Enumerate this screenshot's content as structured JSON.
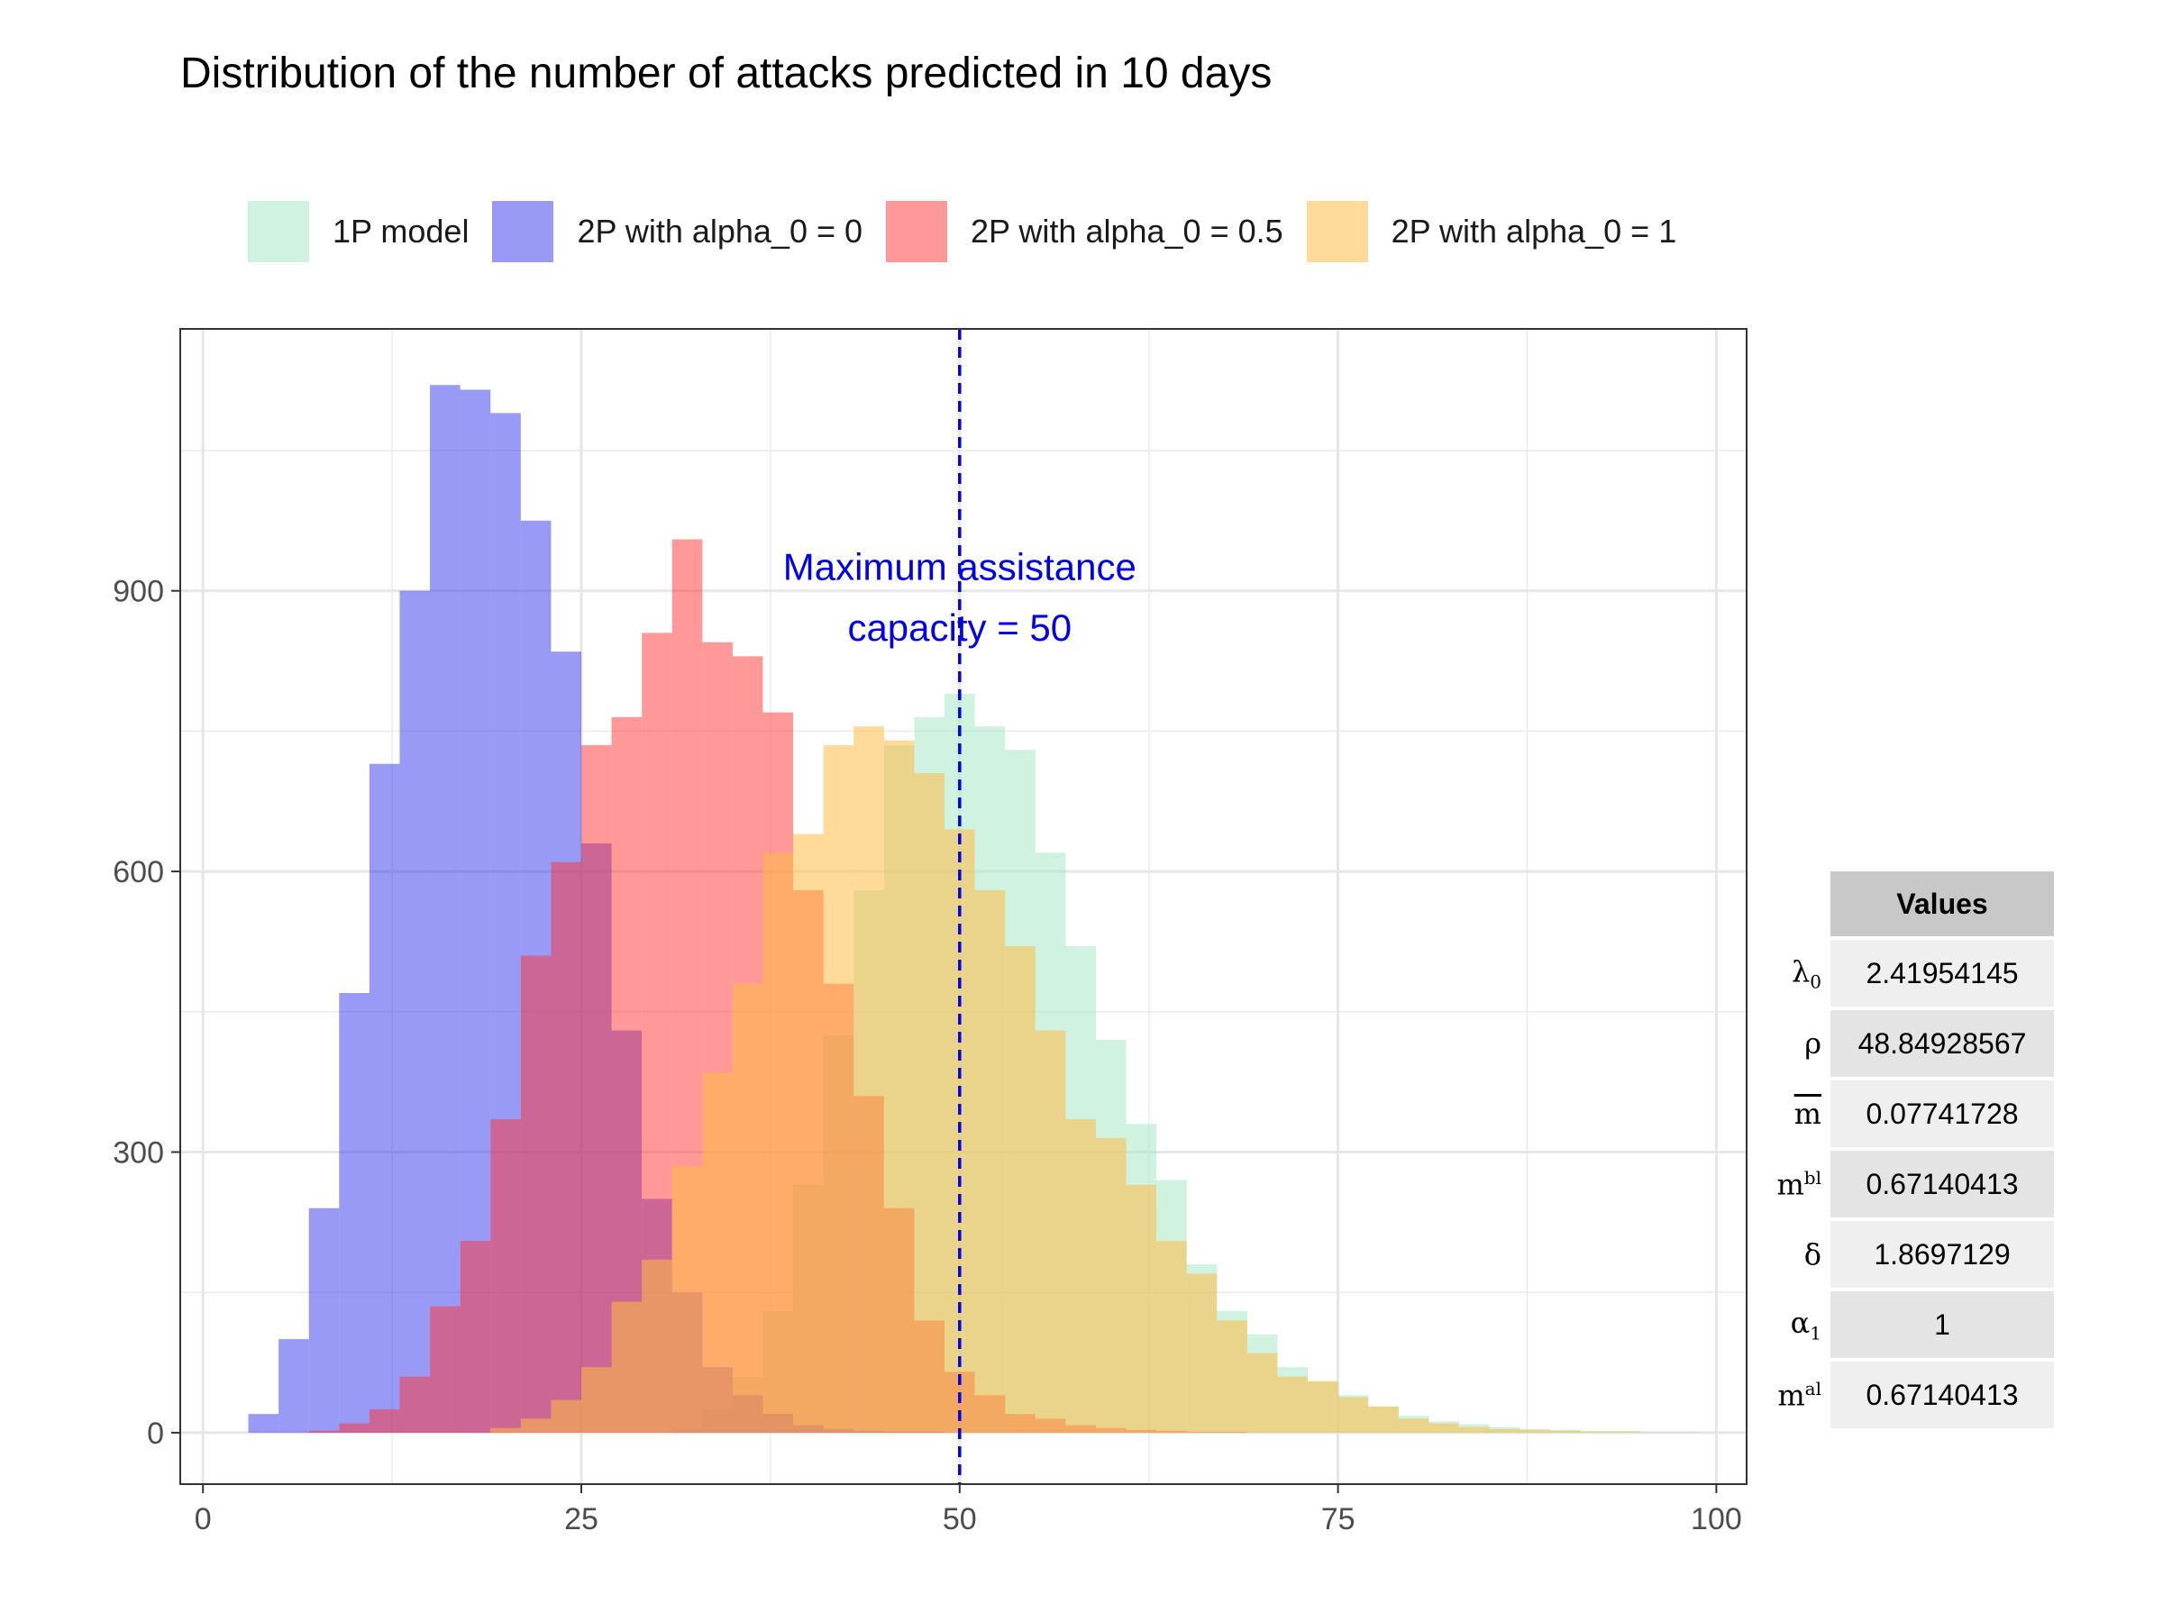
{
  "chart_data": {
    "type": "histogram",
    "title": "Distribution of the number of attacks predicted in 10 days",
    "xlabel": "",
    "ylabel": "",
    "xlim": [
      -1.5,
      102
    ],
    "ylim": [
      -55,
      1180
    ],
    "x_ticks": [
      0,
      25,
      50,
      75,
      100
    ],
    "y_ticks": [
      0,
      300,
      600,
      900
    ],
    "bin_width": 2,
    "bin_starts": [
      3,
      5,
      7,
      9,
      11,
      13,
      15,
      17,
      19,
      21,
      23,
      25,
      27,
      29,
      31,
      33,
      35,
      37,
      39,
      41,
      43,
      45,
      47,
      49,
      51,
      53,
      55,
      57,
      59,
      61,
      63,
      65,
      67,
      69,
      71,
      73,
      75,
      77,
      79,
      81,
      83,
      85,
      87,
      89,
      91,
      93,
      95,
      97
    ],
    "series": [
      {
        "name": "1P model",
        "color": "#a7e7c9",
        "opacity": 0.55,
        "values": [
          0,
          0,
          0,
          0,
          0,
          0,
          0,
          0,
          0,
          0,
          0,
          0,
          0,
          0,
          5,
          25,
          60,
          130,
          265,
          425,
          580,
          735,
          765,
          790,
          755,
          730,
          620,
          520,
          420,
          330,
          270,
          180,
          130,
          105,
          70,
          55,
          40,
          28,
          18,
          12,
          9,
          6,
          4,
          3,
          2,
          2,
          1,
          1
        ]
      },
      {
        "name": "2P with alpha_0 = 0",
        "color": "#3333ee",
        "opacity": 0.5,
        "values": [
          20,
          100,
          240,
          470,
          715,
          900,
          1120,
          1115,
          1090,
          975,
          835,
          630,
          430,
          250,
          150,
          70,
          40,
          20,
          8,
          4,
          2,
          1,
          1,
          0,
          0,
          0,
          0,
          0,
          0,
          0,
          0,
          0,
          0,
          0,
          0,
          0,
          0,
          0,
          0,
          0,
          0,
          0,
          0,
          0,
          0,
          0,
          0,
          0
        ]
      },
      {
        "name": "2P with alpha_0 = 0.5",
        "color": "#ff3333",
        "opacity": 0.5,
        "values": [
          0,
          0,
          2,
          10,
          25,
          60,
          135,
          205,
          335,
          510,
          610,
          735,
          765,
          855,
          955,
          845,
          830,
          770,
          580,
          480,
          360,
          240,
          120,
          65,
          40,
          20,
          15,
          8,
          5,
          3,
          2,
          1,
          1,
          0,
          0,
          0,
          0,
          0,
          0,
          0,
          0,
          0,
          0,
          0,
          0,
          0,
          0,
          0
        ]
      },
      {
        "name": "2P with alpha_0 = 1",
        "color": "#ffbb44",
        "opacity": 0.55,
        "values": [
          0,
          0,
          0,
          0,
          0,
          0,
          0,
          0,
          5,
          15,
          35,
          70,
          140,
          185,
          285,
          385,
          480,
          620,
          640,
          735,
          755,
          740,
          705,
          645,
          580,
          520,
          430,
          335,
          315,
          265,
          205,
          170,
          120,
          85,
          60,
          55,
          38,
          28,
          15,
          10,
          6,
          4,
          3,
          2,
          1,
          1,
          0,
          0
        ]
      }
    ],
    "annotation": {
      "lines": [
        "Maximum assistance",
        "capacity = 50"
      ],
      "x": 50,
      "y_lines": [
        925,
        860
      ],
      "color": "#0000ee"
    },
    "vline": {
      "x": 50,
      "color": "#0000ee",
      "style": "dashed"
    },
    "legend_position": "top"
  },
  "table": {
    "header": "Values",
    "rows": [
      {
        "symbol": "λ",
        "sub": "0",
        "sup": "",
        "overline": false,
        "value": "2.41954145"
      },
      {
        "symbol": "ρ",
        "sub": "",
        "sup": "",
        "overline": false,
        "value": "48.84928567"
      },
      {
        "symbol": "m",
        "sub": "",
        "sup": "",
        "overline": true,
        "value": "0.07741728"
      },
      {
        "symbol": "m",
        "sub": "",
        "sup": "bl",
        "overline": false,
        "value": "0.67140413"
      },
      {
        "symbol": "δ",
        "sub": "",
        "sup": "",
        "overline": false,
        "value": "1.8697129"
      },
      {
        "symbol": "α",
        "sub": "1",
        "sup": "",
        "overline": false,
        "value": "1"
      },
      {
        "symbol": "m",
        "sub": "",
        "sup": "al",
        "overline": false,
        "value": "0.67140413"
      }
    ]
  }
}
